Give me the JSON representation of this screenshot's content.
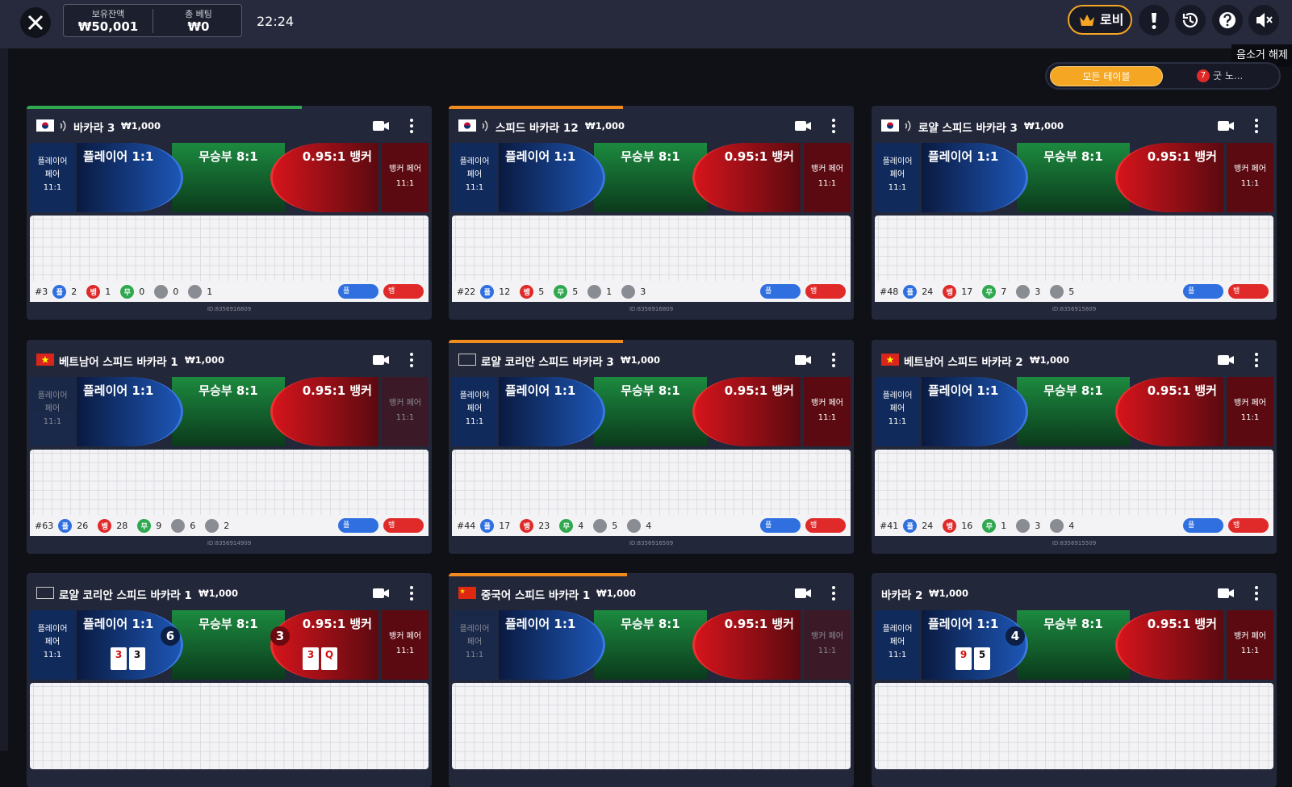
{
  "header": {
    "balance_label": "보유잔액",
    "balance": "₩50,001",
    "bet_label": "총 베팅",
    "bet": "₩0",
    "time": "22:24",
    "lobby": "로비",
    "tooltip": "음소거 해제"
  },
  "tabs": {
    "all": "모든 테이블",
    "badge": "7",
    "other": "굿 노..."
  },
  "bet_labels": {
    "player_pair": "플레이어 페어",
    "pair_odds": "11:1",
    "player": "플레이어 1:1",
    "tie": "무승부 8:1",
    "banker": "0.95:1 뱅커",
    "banker_pair": "뱅커 페어"
  },
  "stat_labels": {
    "player": "플",
    "banker": "뱅",
    "tie": "무"
  },
  "tables": [
    {
      "name": "바카라 3",
      "limit": "₩1,000",
      "flag": "kr",
      "sound": true,
      "timer": {
        "percent": 68,
        "color": "#2fa84f"
      },
      "round": "#3",
      "player": 2,
      "banker": 1,
      "tie": 0,
      "player_pair": 0,
      "banker_pair": 1,
      "id": "ID:8356916809"
    },
    {
      "name": "스피드 바카라 12",
      "limit": "₩1,000",
      "flag": "kr",
      "sound": true,
      "timer": {
        "percent": 43,
        "color": "#f08c1e"
      },
      "round": "#22",
      "player": 12,
      "banker": 5,
      "tie": 5,
      "player_pair": 1,
      "banker_pair": 3,
      "id": "ID:8356916809"
    },
    {
      "name": "로얄 스피드 바카라 3",
      "limit": "₩1,000",
      "flag": "kr",
      "sound": true,
      "round": "#48",
      "player": 24,
      "banker": 17,
      "tie": 7,
      "player_pair": 3,
      "banker_pair": 5,
      "id": "ID:8356915809"
    },
    {
      "name": "베트남어 스피드 바카라 1",
      "limit": "₩1,000",
      "flag": "vn",
      "pairs_dim": true,
      "round": "#63",
      "player": 26,
      "banker": 28,
      "tie": 9,
      "player_pair": 6,
      "banker_pair": 2,
      "id": "ID:8356914909"
    },
    {
      "name": "로얄 코리안 스피드 바카라 3",
      "limit": "₩1,000",
      "flag": "blank",
      "timer": {
        "percent": 43,
        "color": "#f08c1e"
      },
      "round": "#44",
      "player": 17,
      "banker": 23,
      "tie": 4,
      "player_pair": 5,
      "banker_pair": 4,
      "id": "ID:8356916509"
    },
    {
      "name": "베트남어 스피드 바카라 2",
      "limit": "₩1,000",
      "flag": "vn",
      "round": "#41",
      "player": 24,
      "banker": 16,
      "tie": 1,
      "player_pair": 3,
      "banker_pair": 4,
      "id": "ID:8356915509"
    },
    {
      "name": "로얄 코리안 스피드 바카라 1",
      "limit": "₩1,000",
      "flag": "blank",
      "hand": {
        "player_total": 6,
        "banker_total": 3,
        "player_cards": [
          "3",
          "3"
        ],
        "banker_cards": [
          "3",
          "Q"
        ]
      }
    },
    {
      "name": "중국어 스피드 바카라 1",
      "limit": "₩1,000",
      "flag": "cn",
      "pairs_dim": true,
      "timer": {
        "percent": 44,
        "color": "#f08c1e"
      }
    },
    {
      "name": "바카라 2",
      "limit": "₩1,000",
      "hand": {
        "player_total": 4,
        "player_cards": [
          "9",
          "5"
        ]
      }
    }
  ]
}
